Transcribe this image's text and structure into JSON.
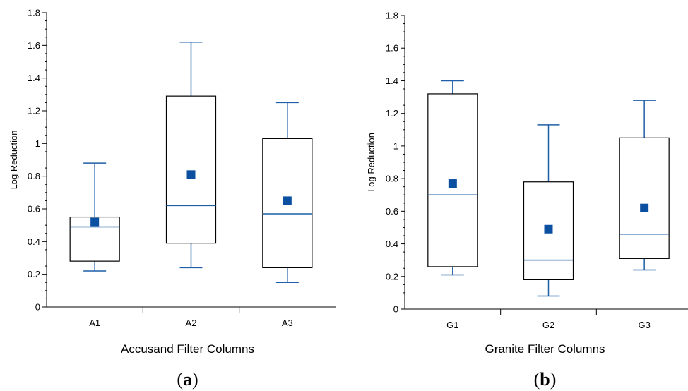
{
  "chart_data": [
    {
      "type": "box",
      "panel_label": "a",
      "xlabel": "Accusand Filter Columns",
      "ylabel": "Log Reduction",
      "ylim": [
        0,
        1.8
      ],
      "yticks": [
        "0",
        "0.2",
        "0.4",
        "0.6",
        "0.8",
        "1",
        "1.2",
        "1.4",
        "1.6",
        "1.8"
      ],
      "categories": [
        "A1",
        "A2",
        "A3"
      ],
      "boxes": [
        {
          "name": "A1",
          "whisker_low": 0.22,
          "q1": 0.28,
          "median": 0.49,
          "q3": 0.55,
          "whisker_high": 0.88,
          "mean": 0.52
        },
        {
          "name": "A2",
          "whisker_low": 0.24,
          "q1": 0.39,
          "median": 0.62,
          "q3": 1.29,
          "whisker_high": 1.62,
          "mean": 0.81
        },
        {
          "name": "A3",
          "whisker_low": 0.15,
          "q1": 0.24,
          "median": 0.57,
          "q3": 1.03,
          "whisker_high": 1.25,
          "mean": 0.65
        }
      ],
      "box_color": "#000000",
      "line_color": "#1f5fa8",
      "mean_color": "#0b4fa0"
    },
    {
      "type": "box",
      "panel_label": "b",
      "xlabel": "Granite Filter Columns",
      "ylabel": "Log Reduction",
      "ylim": [
        0,
        1.8
      ],
      "yticks": [
        "0",
        "0.2",
        "0.4",
        "0.6",
        "0.8",
        "1",
        "1.2",
        "1.4",
        "1.6",
        "1.8"
      ],
      "categories": [
        "G1",
        "G2",
        "G3"
      ],
      "boxes": [
        {
          "name": "G1",
          "whisker_low": 0.21,
          "q1": 0.26,
          "median": 0.7,
          "q3": 1.32,
          "whisker_high": 1.4,
          "mean": 0.77
        },
        {
          "name": "G2",
          "whisker_low": 0.08,
          "q1": 0.18,
          "median": 0.3,
          "q3": 0.78,
          "whisker_high": 1.13,
          "mean": 0.49
        },
        {
          "name": "G3",
          "whisker_low": 0.24,
          "q1": 0.31,
          "median": 0.46,
          "q3": 1.05,
          "whisker_high": 1.28,
          "mean": 0.62
        }
      ],
      "box_color": "#000000",
      "line_color": "#1f5fa8",
      "mean_color": "#0b4fa0"
    }
  ]
}
